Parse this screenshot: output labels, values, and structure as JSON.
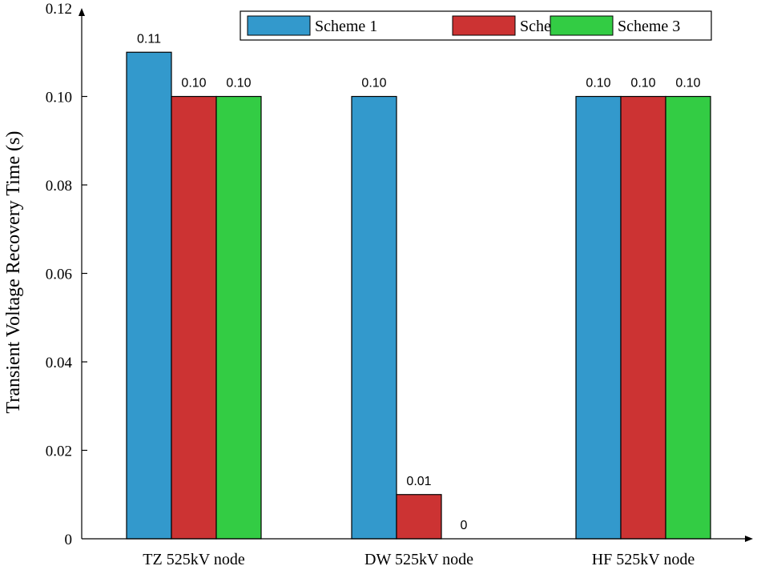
{
  "chart_data": {
    "type": "bar",
    "ylabel": "Transient Voltage Recovery Time (s)",
    "xlabel": "",
    "ylim": [
      0,
      0.12
    ],
    "yticks": [
      0,
      0.02,
      0.04,
      0.06,
      0.08,
      0.1,
      0.12
    ],
    "ytick_labels": [
      "0",
      "0.02",
      "0.04",
      "0.06",
      "0.08",
      "0.10",
      "0.12"
    ],
    "categories": [
      "TZ 525kV node",
      "DW 525kV node",
      "HF 525kV node"
    ],
    "series": [
      {
        "name": "Scheme 1",
        "color": "#3399cc",
        "values": [
          0.11,
          0.1,
          0.1
        ],
        "labels": [
          "0.11",
          "0.10",
          "0.10"
        ]
      },
      {
        "name": "Scheme 2",
        "color": "#cc3333",
        "values": [
          0.1,
          0.01,
          0.1
        ],
        "labels": [
          "0.10",
          "0.01",
          "0.10"
        ]
      },
      {
        "name": "Scheme 3",
        "color": "#33cc44",
        "values": [
          0.1,
          0,
          0.1
        ],
        "labels": [
          "0.10",
          "0",
          "0.10"
        ]
      }
    ],
    "legend_position": "top-right",
    "grid": false
  }
}
